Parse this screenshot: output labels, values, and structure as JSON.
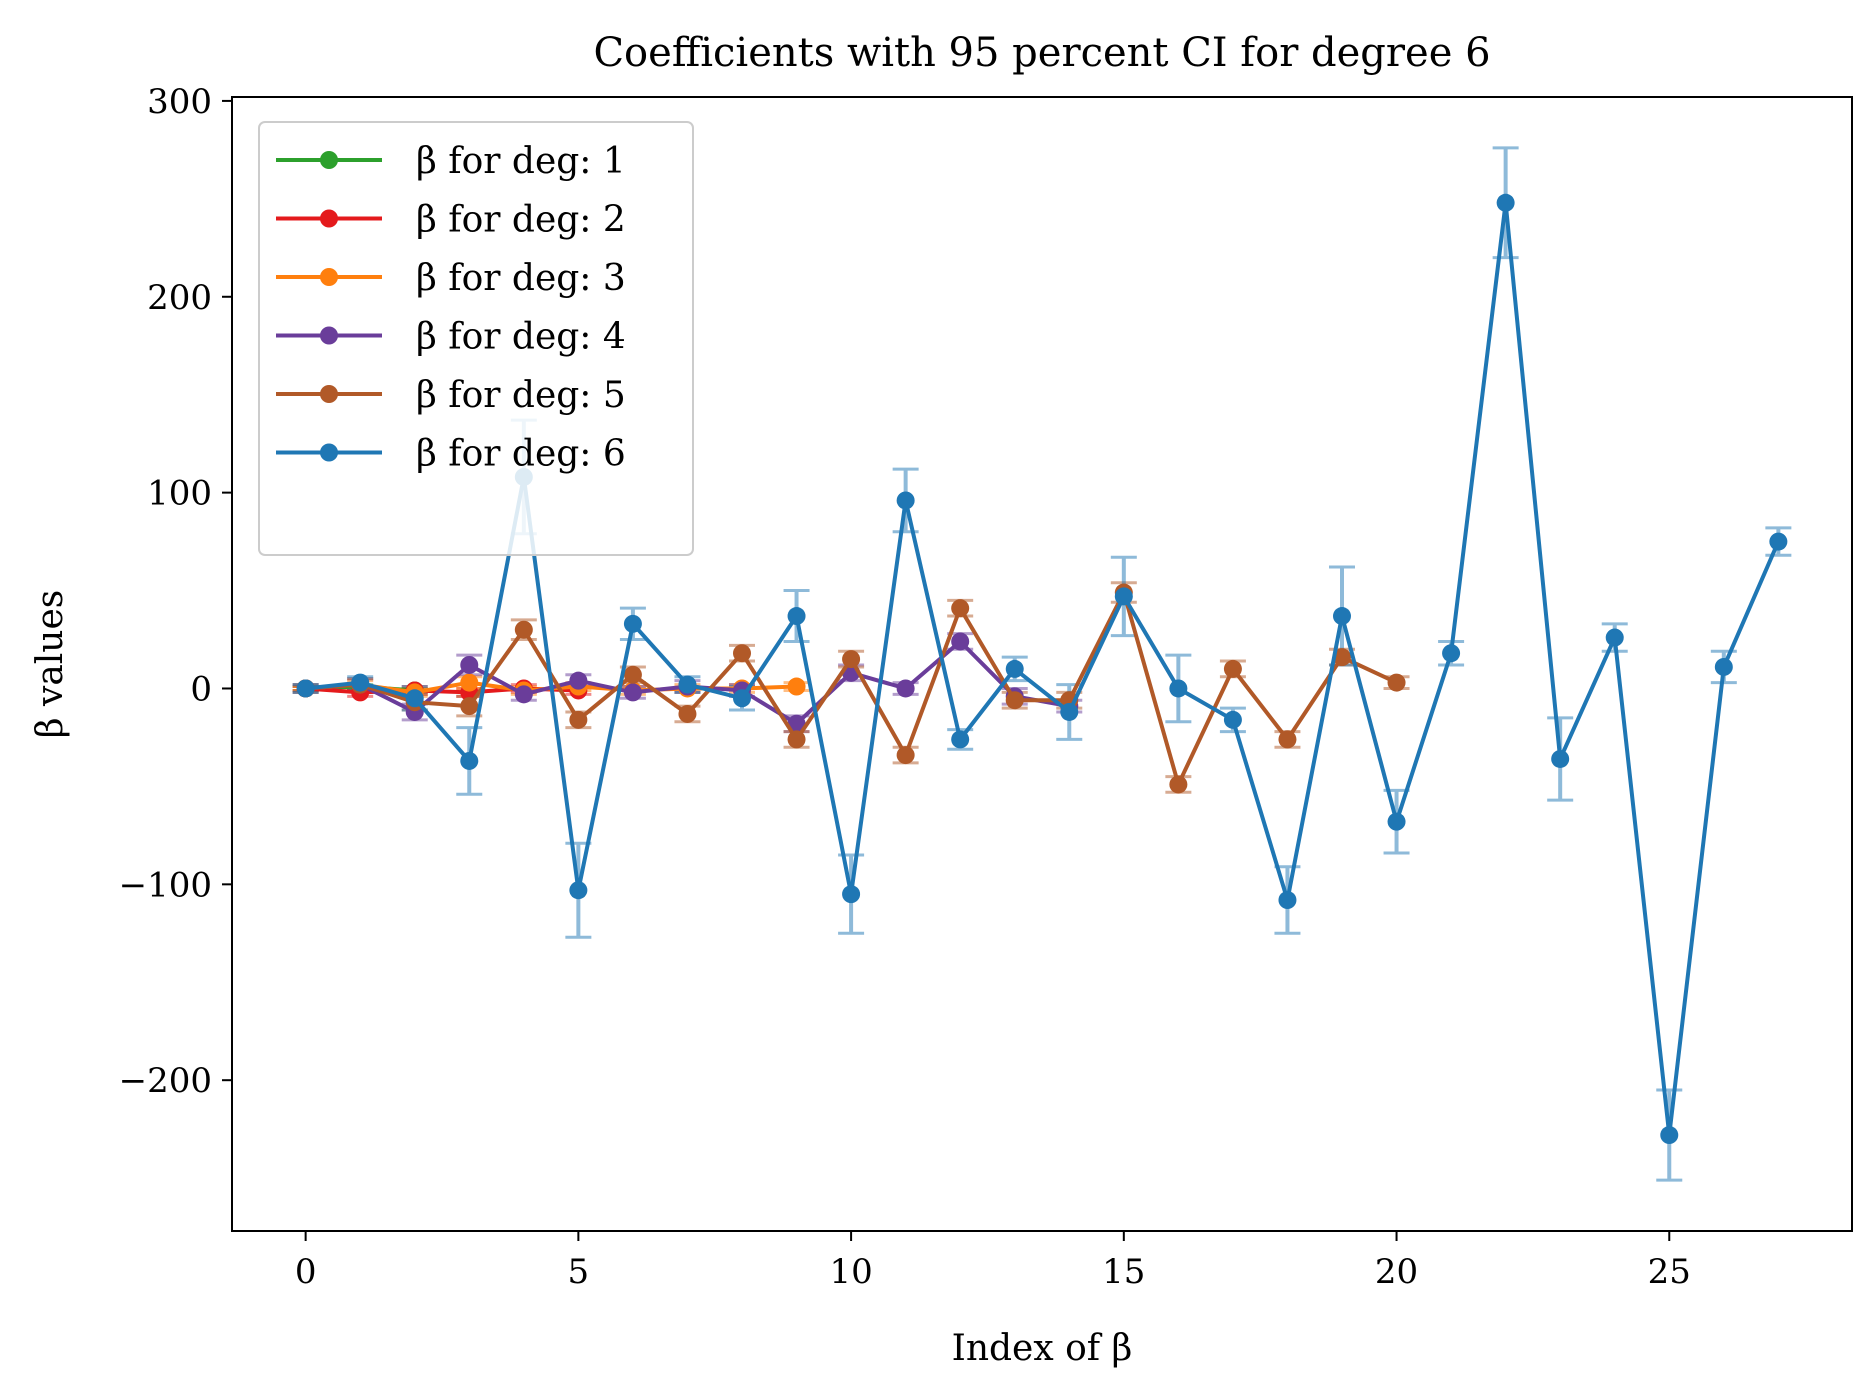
{
  "chart_data": {
    "type": "line",
    "title": "Coefficients with 95 percent CI for degree 6",
    "xlabel": "Index of β",
    "ylabel": "β values",
    "xlim": [
      -1.35,
      28.35
    ],
    "ylim": [
      -277,
      302
    ],
    "xticks": [
      0,
      5,
      10,
      15,
      20,
      25
    ],
    "yticks": [
      -200,
      -100,
      0,
      100,
      200,
      300
    ],
    "ytick_labels": [
      "−200",
      "−100",
      "0",
      "100",
      "200",
      "300"
    ],
    "grid": false,
    "legend_position": "upper-left",
    "series": [
      {
        "name": "β for deg: 1",
        "color": "#2ca02c",
        "x": [
          0,
          1,
          2
        ],
        "values": [
          0,
          1,
          -1
        ],
        "ci": [
          [
            -1,
            1
          ],
          [
            0,
            2
          ],
          [
            -2,
            0
          ]
        ]
      },
      {
        "name": "β for deg: 2",
        "color": "#e41a1c",
        "x": [
          0,
          1,
          2,
          3,
          4,
          5
        ],
        "values": [
          0,
          -2,
          -1,
          -2,
          0,
          -1
        ],
        "ci": [
          [
            -1,
            1
          ],
          [
            -4,
            0
          ],
          [
            -3,
            1
          ],
          [
            -4,
            0
          ],
          [
            -2,
            2
          ],
          [
            -3,
            1
          ]
        ]
      },
      {
        "name": "β for deg: 3",
        "color": "#ff7f0e",
        "x": [
          0,
          1,
          2,
          3,
          4,
          5,
          6,
          7,
          8,
          9
        ],
        "values": [
          0,
          2,
          -2,
          3,
          -1,
          1,
          -1,
          0,
          0,
          1
        ],
        "ci": [
          [
            -1,
            1
          ],
          [
            0,
            4
          ],
          [
            -4,
            0
          ],
          [
            0,
            6
          ],
          [
            -3,
            1
          ],
          [
            -1,
            3
          ],
          [
            -3,
            1
          ],
          [
            -2,
            2
          ],
          [
            -2,
            2
          ],
          [
            -1,
            3
          ]
        ]
      },
      {
        "name": "β for deg: 4",
        "color": "#6a3d9a",
        "x": [
          0,
          1,
          2,
          3,
          4,
          5,
          6,
          7,
          8,
          9,
          10,
          11,
          12,
          13,
          14
        ],
        "values": [
          0,
          2,
          -12,
          12,
          -3,
          4,
          -2,
          1,
          -1,
          -18,
          8,
          0,
          24,
          -4,
          -9
        ],
        "ci": [
          [
            -2,
            2
          ],
          [
            -1,
            5
          ],
          [
            -16,
            -8
          ],
          [
            7,
            17
          ],
          [
            -6,
            0
          ],
          [
            1,
            7
          ],
          [
            -5,
            1
          ],
          [
            -2,
            4
          ],
          [
            -4,
            2
          ],
          [
            -22,
            -14
          ],
          [
            4,
            12
          ],
          [
            -3,
            3
          ],
          [
            20,
            28
          ],
          [
            -8,
            0
          ],
          [
            -12,
            -6
          ]
        ]
      },
      {
        "name": "β for deg: 5",
        "color": "#b15928",
        "x": [
          0,
          1,
          2,
          3,
          4,
          5,
          6,
          7,
          8,
          9,
          10,
          11,
          12,
          13,
          14,
          15,
          16,
          17,
          18,
          19,
          20
        ],
        "values": [
          0,
          2,
          -7,
          -9,
          30,
          -16,
          7,
          -13,
          18,
          -26,
          15,
          -34,
          41,
          -6,
          -6,
          49,
          -49,
          10,
          -26,
          16,
          3
        ],
        "ci": [
          [
            -2,
            2
          ],
          [
            -1,
            5
          ],
          [
            -11,
            -3
          ],
          [
            -14,
            -4
          ],
          [
            25,
            35
          ],
          [
            -20,
            -12
          ],
          [
            3,
            11
          ],
          [
            -17,
            -9
          ],
          [
            14,
            22
          ],
          [
            -30,
            -22
          ],
          [
            11,
            19
          ],
          [
            -38,
            -30
          ],
          [
            37,
            45
          ],
          [
            -10,
            -2
          ],
          [
            -10,
            -2
          ],
          [
            44,
            54
          ],
          [
            -53,
            -45
          ],
          [
            6,
            14
          ],
          [
            -30,
            -22
          ],
          [
            12,
            20
          ],
          [
            0,
            6
          ]
        ]
      },
      {
        "name": "β for deg: 6",
        "color": "#1f77b4",
        "x": [
          0,
          1,
          2,
          3,
          4,
          5,
          6,
          7,
          8,
          9,
          10,
          11,
          12,
          13,
          14,
          15,
          16,
          17,
          18,
          19,
          20,
          21,
          22,
          23,
          24,
          25,
          26,
          27
        ],
        "values": [
          0,
          3,
          -5,
          -37,
          108,
          -103,
          33,
          2,
          -5,
          37,
          -105,
          96,
          -26,
          10,
          -12,
          47,
          0,
          -16,
          -108,
          37,
          -68,
          18,
          248,
          -36,
          26,
          -228,
          11,
          75
        ],
        "ci": [
          [
            -2,
            2
          ],
          [
            0,
            6
          ],
          [
            -11,
            1
          ],
          [
            -54,
            -20
          ],
          [
            79,
            137
          ],
          [
            -127,
            -79
          ],
          [
            25,
            41
          ],
          [
            -2,
            6
          ],
          [
            -11,
            1
          ],
          [
            24,
            50
          ],
          [
            -125,
            -85
          ],
          [
            80,
            112
          ],
          [
            -31,
            -21
          ],
          [
            4,
            16
          ],
          [
            -26,
            2
          ],
          [
            27,
            67
          ],
          [
            -17,
            17
          ],
          [
            -22,
            -10
          ],
          [
            -125,
            -91
          ],
          [
            12,
            62
          ],
          [
            -84,
            -52
          ],
          [
            12,
            24
          ],
          [
            220,
            276
          ],
          [
            -57,
            -15
          ],
          [
            19,
            33
          ],
          [
            -251,
            -205
          ],
          [
            3,
            19
          ],
          [
            68,
            82
          ]
        ]
      }
    ]
  }
}
